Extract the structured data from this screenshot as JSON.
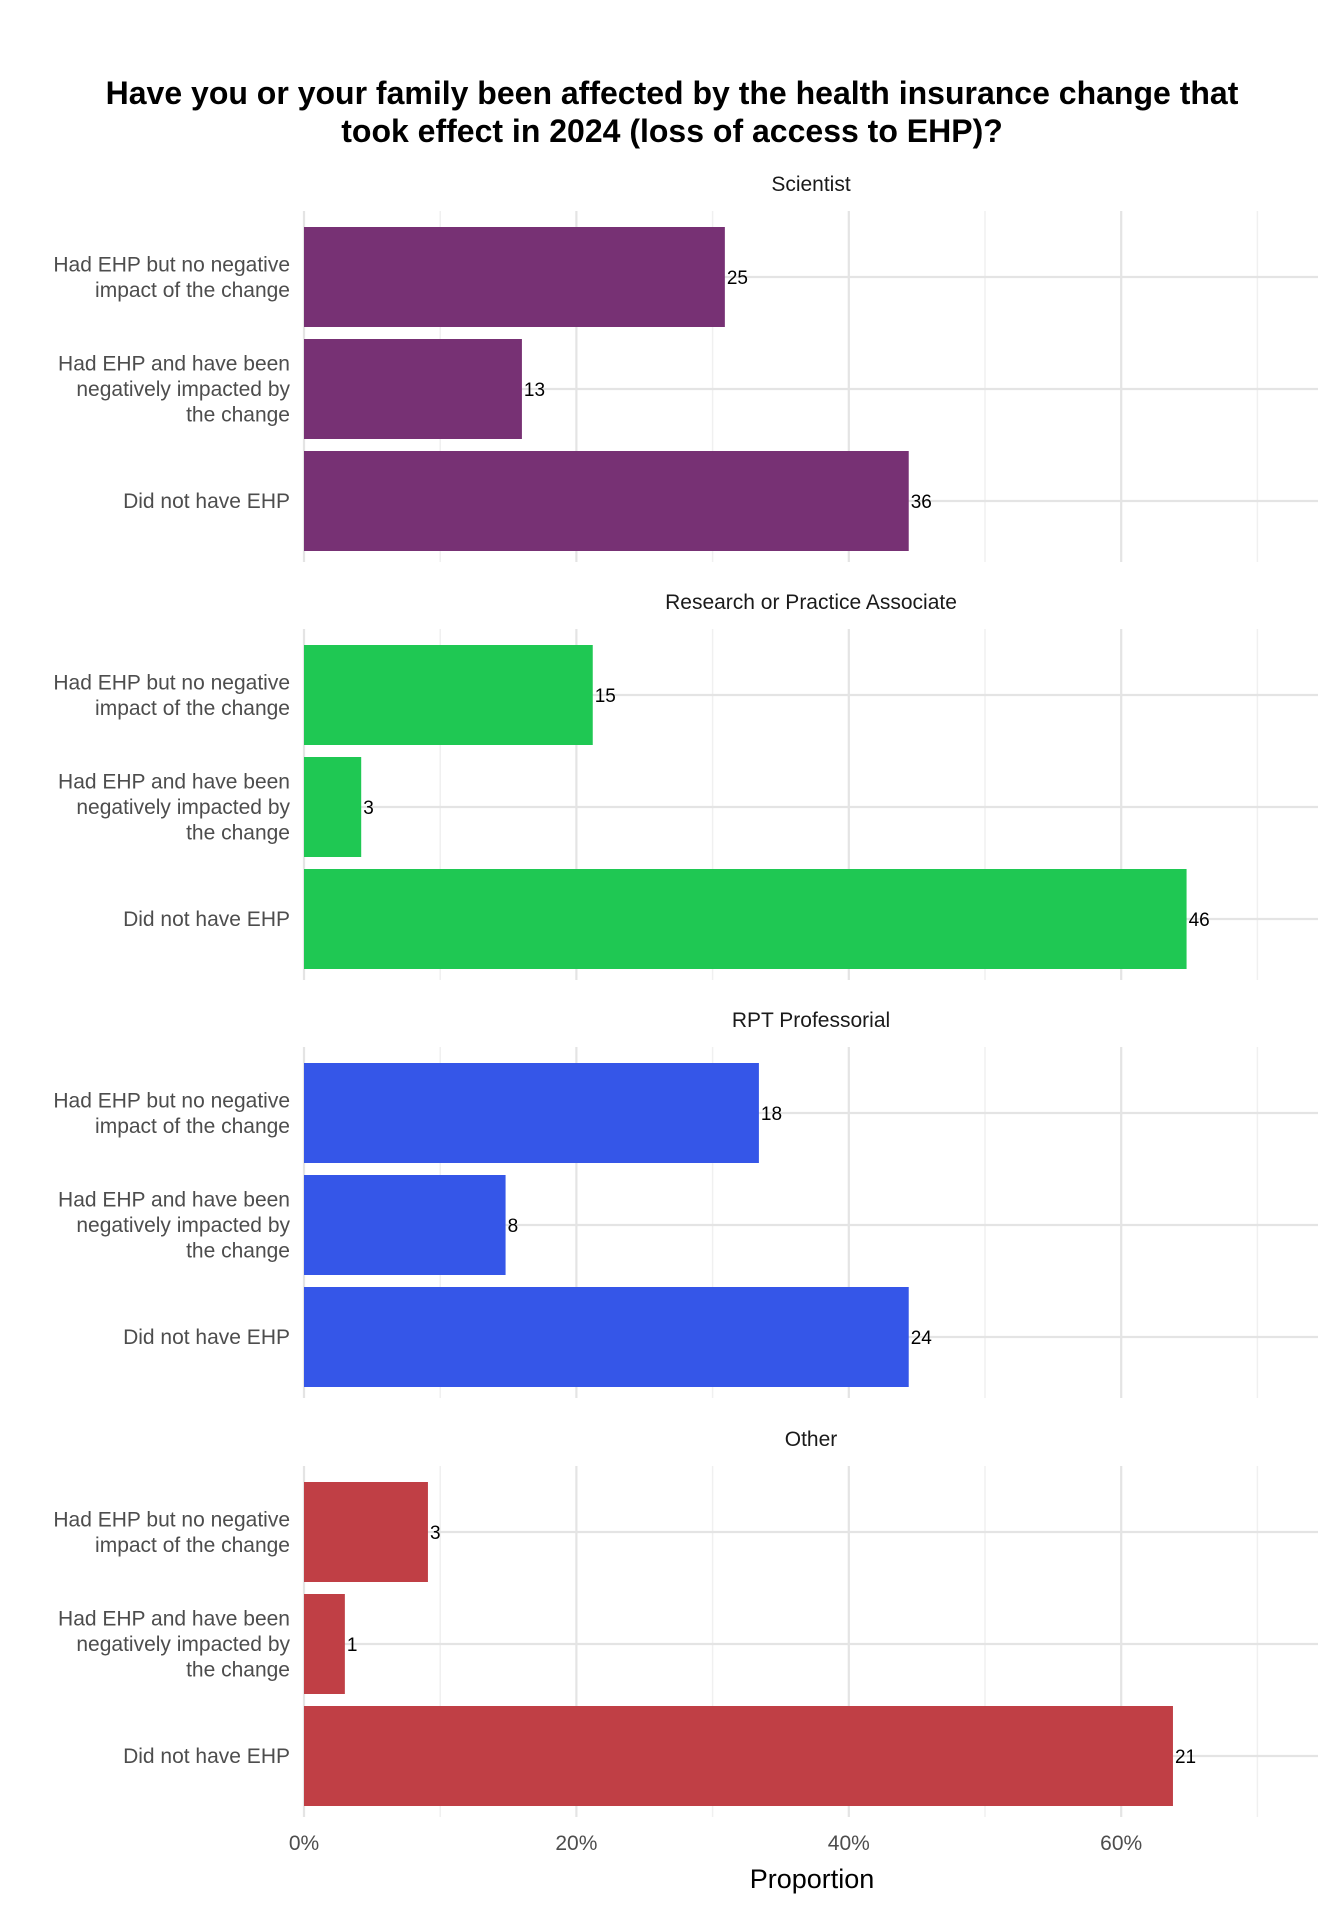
{
  "chart_data": {
    "type": "bar",
    "orientation": "horizontal",
    "title_lines": [
      "Have you or your family been affected by the health insurance change that",
      "took effect in 2024 (loss of access to EHP)?"
    ],
    "xlabel": "Proportion",
    "ylabel": "",
    "xlim": [
      0,
      0.745
    ],
    "x_ticks": [
      0,
      0.2,
      0.4,
      0.6
    ],
    "x_tick_labels": [
      "0%",
      "20%",
      "40%",
      "60%"
    ],
    "grid": true,
    "legend": "none",
    "categories": [
      [
        "Had EHP but no negative",
        "impact of the change"
      ],
      [
        "Had EHP and have been",
        "negatively impacted by",
        "the change"
      ],
      [
        "Did not have EHP"
      ]
    ],
    "panels": [
      {
        "name": "Scientist",
        "color": "#773174",
        "counts": [
          25,
          13,
          36
        ],
        "proportions": [
          0.309,
          0.16,
          0.444
        ]
      },
      {
        "name": "Research or Practice Associate",
        "color": "#1fc853",
        "counts": [
          15,
          3,
          46
        ],
        "proportions": [
          0.212,
          0.042,
          0.648
        ]
      },
      {
        "name": "RPT Professorial",
        "color": "#3556e8",
        "counts": [
          18,
          8,
          24
        ],
        "proportions": [
          0.334,
          0.148,
          0.444
        ]
      },
      {
        "name": "Other",
        "color": "#c03f45",
        "counts": [
          3,
          1,
          21
        ],
        "proportions": [
          0.091,
          0.03,
          0.638
        ]
      }
    ]
  }
}
